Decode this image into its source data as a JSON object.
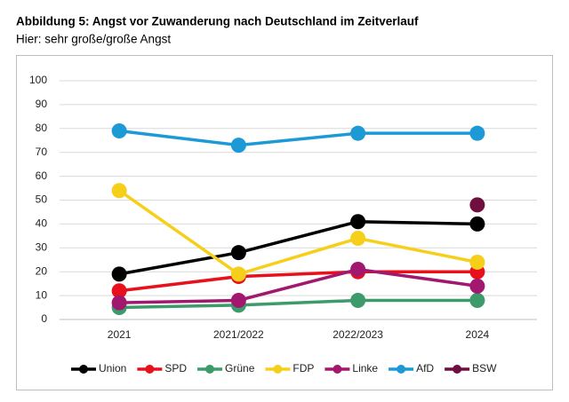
{
  "chart_data": {
    "type": "line",
    "title": "Abbildung 5: Angst vor Zuwanderung nach Deutschland im Zeitverlauf",
    "subtitle": "Hier: sehr große/große Angst",
    "categories": [
      "2021",
      "2021/2022",
      "2022/2023",
      "2024"
    ],
    "series": [
      {
        "name": "Union",
        "color": "#000000",
        "values": [
          19,
          28,
          41,
          40
        ]
      },
      {
        "name": "SPD",
        "color": "#e8101a",
        "values": [
          12,
          18,
          20,
          20
        ]
      },
      {
        "name": "Grüne",
        "color": "#3c9a6b",
        "values": [
          5,
          6,
          8,
          8
        ]
      },
      {
        "name": "FDP",
        "color": "#f6cf1a",
        "values": [
          54,
          19,
          34,
          24
        ]
      },
      {
        "name": "Linke",
        "color": "#a3186f",
        "values": [
          7,
          8,
          21,
          14
        ]
      },
      {
        "name": "AfD",
        "color": "#1d9ad6",
        "values": [
          79,
          73,
          78,
          78
        ]
      },
      {
        "name": "BSW",
        "color": "#6e0f40",
        "values": [
          null,
          null,
          null,
          48
        ]
      }
    ],
    "ylim": [
      0,
      100
    ],
    "yticks": [
      0,
      10,
      20,
      30,
      40,
      50,
      60,
      70,
      80,
      90,
      100
    ],
    "grid": true,
    "legend": "bottom"
  }
}
